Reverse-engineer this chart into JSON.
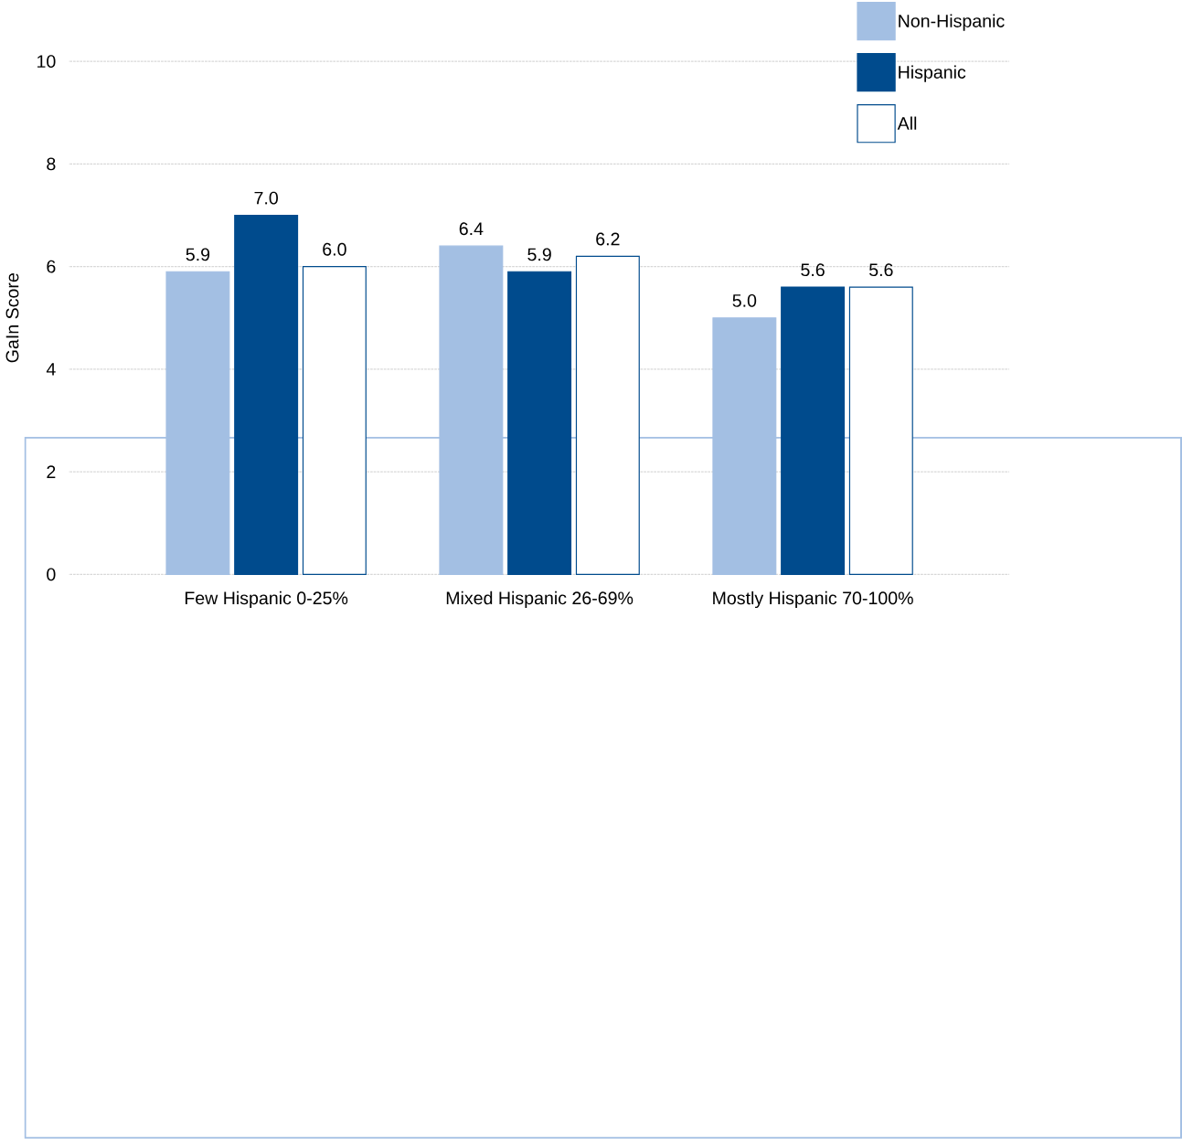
{
  "chart_data": {
    "type": "bar",
    "ylabel": "GaIn Score",
    "categories": [
      "Few Hispanic 0-25%",
      "Mixed Hispanic 26-69%",
      "Mostly Hispanic 70-100%"
    ],
    "series": [
      {
        "name": "Non-Hispanic",
        "color": "#a3bfe3",
        "values": [
          5.9,
          6.4,
          5.0
        ],
        "value_labels": [
          "5.9",
          "6.4",
          "5.0"
        ]
      },
      {
        "name": "Hispanic",
        "color": "#004b8d",
        "values": [
          7.0,
          5.9,
          5.6
        ],
        "value_labels": [
          "7.0",
          "5.9",
          "5.6"
        ]
      },
      {
        "name": "All",
        "color": "#ffffff",
        "values": [
          6.0,
          6.2,
          5.6
        ],
        "value_labels": [
          "6.0",
          "6.2",
          "5.6"
        ]
      }
    ],
    "ylim": [
      0,
      10
    ],
    "yticks": [
      0,
      2,
      4,
      6,
      8,
      10
    ],
    "grid": "y",
    "legend": "top right"
  }
}
